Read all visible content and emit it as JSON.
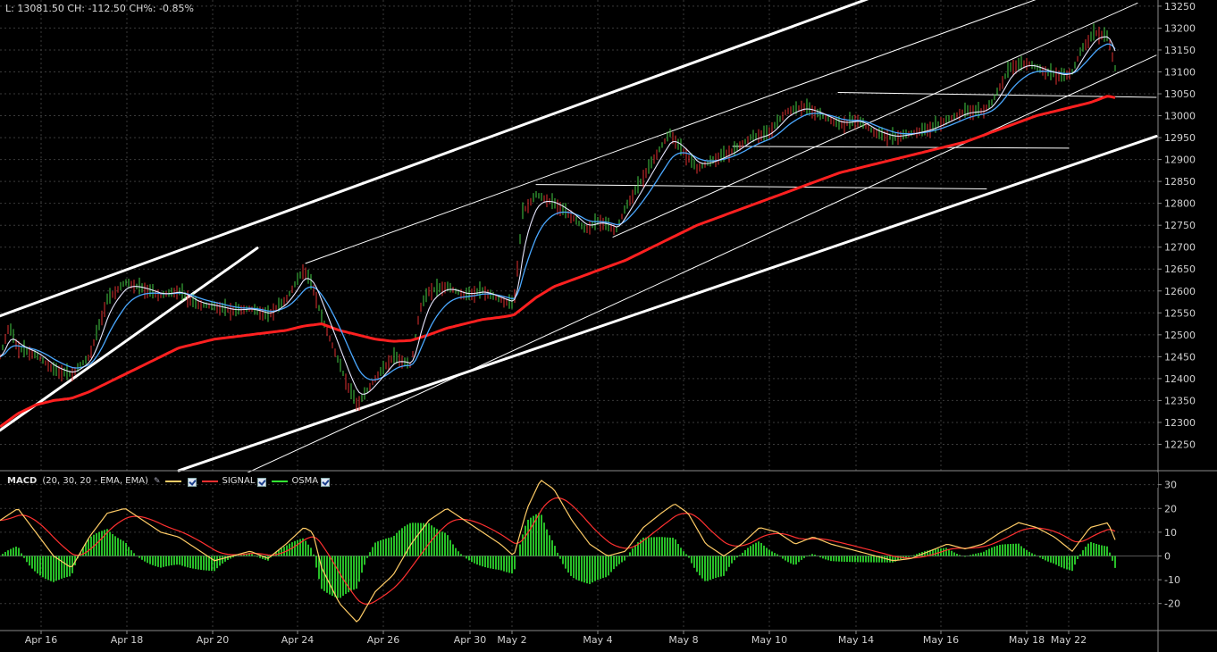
{
  "quote": {
    "text": "L: 13081.50 CH: -112.50 CH%: -0.85%"
  },
  "chart_data": [
    {
      "type": "line",
      "panel": "price",
      "ylim": [
        12200,
        13260
      ],
      "y_ticks": [
        12250,
        12300,
        12350,
        12400,
        12450,
        12500,
        12550,
        12600,
        12650,
        12700,
        12750,
        12800,
        12850,
        12900,
        12950,
        13000,
        13050,
        13100,
        13150,
        13200,
        13250
      ],
      "x_labels": [
        "Apr 16",
        "Apr 18",
        "Apr 20",
        "Apr 24",
        "Apr 26",
        "Apr 30",
        "May 2",
        "May 4",
        "May 8",
        "May 10",
        "May 14",
        "May 16",
        "May 18",
        "May 22"
      ],
      "grid": true,
      "series": [
        {
          "color": "#44cc44",
          "anchors": [
            [
              0,
              12450
            ],
            [
              10,
              12520
            ],
            [
              20,
              12470
            ],
            [
              40,
              12455
            ],
            [
              60,
              12420
            ],
            [
              80,
              12410
            ],
            [
              100,
              12450
            ],
            [
              120,
              12580
            ],
            [
              140,
              12620
            ],
            [
              160,
              12605
            ],
            [
              180,
              12590
            ],
            [
              200,
              12600
            ],
            [
              220,
              12570
            ],
            [
              240,
              12565
            ],
            [
              260,
              12555
            ],
            [
              280,
              12560
            ],
            [
              300,
              12545
            ],
            [
              320,
              12580
            ],
            [
              340,
              12650
            ],
            [
              350,
              12610
            ],
            [
              360,
              12540
            ],
            [
              375,
              12460
            ],
            [
              390,
              12380
            ],
            [
              400,
              12340
            ],
            [
              420,
              12400
            ],
            [
              440,
              12450
            ],
            [
              460,
              12430
            ],
            [
              470,
              12560
            ],
            [
              480,
              12600
            ],
            [
              500,
              12610
            ],
            [
              520,
              12590
            ],
            [
              540,
              12600
            ],
            [
              560,
              12580
            ],
            [
              575,
              12570
            ],
            [
              585,
              12780
            ],
            [
              600,
              12820
            ],
            [
              620,
              12800
            ],
            [
              640,
              12770
            ],
            [
              655,
              12740
            ],
            [
              670,
              12760
            ],
            [
              690,
              12740
            ],
            [
              700,
              12790
            ],
            [
              720,
              12860
            ],
            [
              740,
              12930
            ],
            [
              750,
              12960
            ],
            [
              760,
              12930
            ],
            [
              780,
              12880
            ],
            [
              800,
              12900
            ],
            [
              820,
              12920
            ],
            [
              840,
              12950
            ],
            [
              860,
              12960
            ],
            [
              880,
              13010
            ],
            [
              900,
              13020
            ],
            [
              920,
              13000
            ],
            [
              940,
              12980
            ],
            [
              960,
              12990
            ],
            [
              980,
              12960
            ],
            [
              1000,
              12950
            ],
            [
              1020,
              12960
            ],
            [
              1040,
              12970
            ],
            [
              1060,
              12990
            ],
            [
              1080,
              13010
            ],
            [
              1100,
              13010
            ],
            [
              1110,
              13030
            ],
            [
              1130,
              13110
            ],
            [
              1150,
              13120
            ],
            [
              1170,
              13100
            ],
            [
              1190,
              13090
            ],
            [
              1200,
              13100
            ],
            [
              1210,
              13150
            ],
            [
              1225,
              13190
            ],
            [
              1240,
              13180
            ],
            [
              1250,
              13090
            ]
          ]
        },
        {
          "color": "#e8e8ff",
          "smooth": 6
        },
        {
          "color": "#4aa8ff",
          "smooth": 14
        },
        {
          "color": "#ff2020",
          "anchors": [
            [
              0,
              12290
            ],
            [
              20,
              12320
            ],
            [
              40,
              12340
            ],
            [
              60,
              12350
            ],
            [
              80,
              12355
            ],
            [
              100,
              12370
            ],
            [
              120,
              12390
            ],
            [
              140,
              12410
            ],
            [
              160,
              12430
            ],
            [
              180,
              12450
            ],
            [
              200,
              12470
            ],
            [
              220,
              12480
            ],
            [
              240,
              12490
            ],
            [
              260,
              12495
            ],
            [
              280,
              12500
            ],
            [
              300,
              12505
            ],
            [
              320,
              12510
            ],
            [
              340,
              12520
            ],
            [
              360,
              12525
            ],
            [
              380,
              12510
            ],
            [
              400,
              12500
            ],
            [
              420,
              12490
            ],
            [
              440,
              12485
            ],
            [
              460,
              12487
            ],
            [
              480,
              12500
            ],
            [
              500,
              12515
            ],
            [
              520,
              12525
            ],
            [
              540,
              12535
            ],
            [
              560,
              12540
            ],
            [
              575,
              12545
            ],
            [
              600,
              12585
            ],
            [
              620,
              12610
            ],
            [
              640,
              12625
            ],
            [
              660,
              12640
            ],
            [
              680,
              12655
            ],
            [
              700,
              12670
            ],
            [
              720,
              12690
            ],
            [
              740,
              12710
            ],
            [
              760,
              12730
            ],
            [
              780,
              12750
            ],
            [
              800,
              12765
            ],
            [
              820,
              12780
            ],
            [
              840,
              12795
            ],
            [
              860,
              12810
            ],
            [
              880,
              12825
            ],
            [
              900,
              12840
            ],
            [
              920,
              12855
            ],
            [
              940,
              12870
            ],
            [
              960,
              12880
            ],
            [
              980,
              12890
            ],
            [
              1000,
              12900
            ],
            [
              1020,
              12910
            ],
            [
              1040,
              12920
            ],
            [
              1060,
              12930
            ],
            [
              1080,
              12940
            ],
            [
              1100,
              12955
            ],
            [
              1120,
              12970
            ],
            [
              1140,
              12985
            ],
            [
              1160,
              13000
            ],
            [
              1180,
              13010
            ],
            [
              1200,
              13020
            ],
            [
              1220,
              13030
            ],
            [
              1240,
              13045
            ],
            [
              1250,
              13040
            ]
          ]
        }
      ]
    },
    {
      "type": "line",
      "panel": "macd",
      "title": "MACD",
      "params": "(20, 30, 20 - EMA, EMA)",
      "ylim": [
        -31,
        34
      ],
      "y_ticks": [
        30,
        20,
        10,
        0,
        -10,
        -20
      ],
      "series": [
        {
          "color": "#ffcc66",
          "anchors": [
            [
              0,
              15
            ],
            [
              20,
              20
            ],
            [
              40,
              10
            ],
            [
              60,
              0
            ],
            [
              80,
              -5
            ],
            [
              100,
              8
            ],
            [
              120,
              18
            ],
            [
              140,
              20
            ],
            [
              160,
              15
            ],
            [
              180,
              10
            ],
            [
              200,
              8
            ],
            [
              220,
              3
            ],
            [
              240,
              -2
            ],
            [
              260,
              0
            ],
            [
              280,
              2
            ],
            [
              300,
              -1
            ],
            [
              320,
              5
            ],
            [
              340,
              12
            ],
            [
              350,
              10
            ],
            [
              360,
              -5
            ],
            [
              380,
              -20
            ],
            [
              400,
              -28
            ],
            [
              420,
              -15
            ],
            [
              440,
              -8
            ],
            [
              460,
              5
            ],
            [
              480,
              15
            ],
            [
              500,
              20
            ],
            [
              520,
              15
            ],
            [
              540,
              10
            ],
            [
              560,
              5
            ],
            [
              575,
              0
            ],
            [
              590,
              20
            ],
            [
              605,
              32
            ],
            [
              620,
              28
            ],
            [
              640,
              15
            ],
            [
              660,
              5
            ],
            [
              680,
              0
            ],
            [
              700,
              2
            ],
            [
              720,
              12
            ],
            [
              740,
              18
            ],
            [
              755,
              22
            ],
            [
              770,
              18
            ],
            [
              790,
              5
            ],
            [
              810,
              0
            ],
            [
              830,
              5
            ],
            [
              850,
              12
            ],
            [
              870,
              10
            ],
            [
              890,
              5
            ],
            [
              910,
              8
            ],
            [
              930,
              5
            ],
            [
              960,
              2
            ],
            [
              980,
              0
            ],
            [
              1000,
              -2
            ],
            [
              1020,
              -1
            ],
            [
              1040,
              2
            ],
            [
              1060,
              5
            ],
            [
              1080,
              3
            ],
            [
              1100,
              5
            ],
            [
              1120,
              10
            ],
            [
              1140,
              14
            ],
            [
              1160,
              12
            ],
            [
              1180,
              8
            ],
            [
              1200,
              2
            ],
            [
              1220,
              12
            ],
            [
              1240,
              14
            ],
            [
              1250,
              5
            ]
          ]
        },
        {
          "color": "#ff3030",
          "smooth": 14
        },
        {
          "color": "#33ee33",
          "bars": true
        }
      ]
    }
  ],
  "macd_legend": {
    "signal_label": "SIGNAL",
    "osma_label": "OSMA"
  }
}
